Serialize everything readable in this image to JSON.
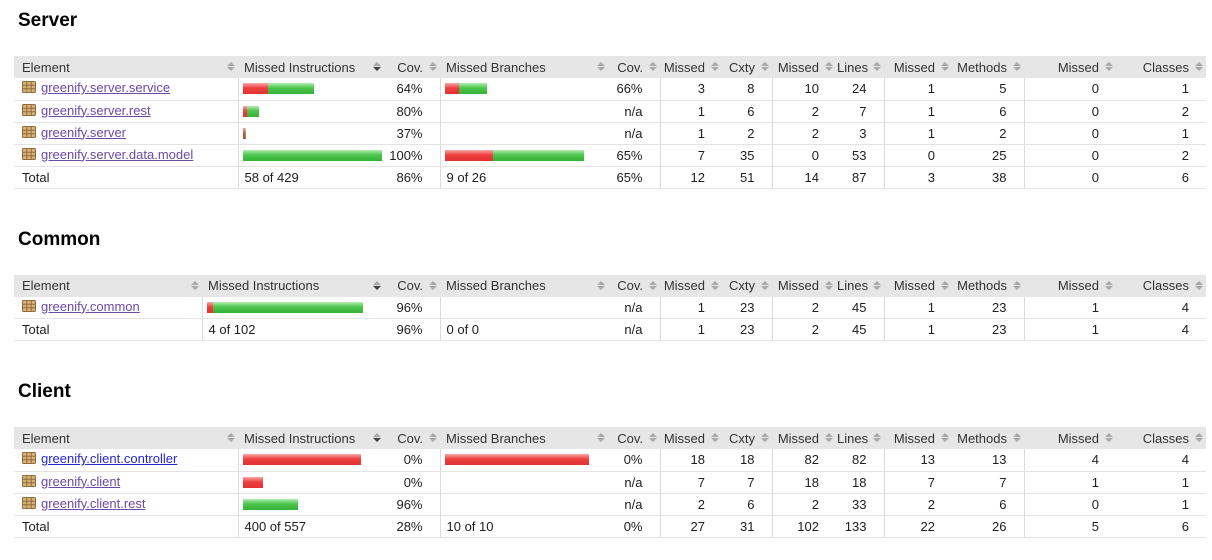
{
  "report": {
    "columns": [
      "Element",
      "Missed Instructions",
      "Cov.",
      "Missed Branches",
      "Cov.",
      "Missed",
      "Cxty",
      "Missed",
      "Lines",
      "Missed",
      "Methods",
      "Missed",
      "Classes"
    ],
    "sort": {
      "active_column_index": 1,
      "direction": "desc"
    },
    "icons": {
      "package_icon": "tan waffle-grid package glyph",
      "sort_icon": "up-down double triangle"
    },
    "colors": {
      "header_bg": "#e6e6e6",
      "bar_red": "#ee4040",
      "bar_green": "#4cc54c",
      "link_visited": "#6b4aa5",
      "link_unvisited": "#2727cc"
    },
    "sections": [
      {
        "title": "Server",
        "rows": [
          {
            "label": "greenify.server.service",
            "link": true,
            "visited": true,
            "mi": {
              "red": 25,
              "green": 46
            },
            "mi_cov": "64%",
            "mb": {
              "red": 14,
              "green": 28
            },
            "mb_cov": "66%",
            "nums": [
              "3",
              "8",
              "10",
              "24",
              "1",
              "5",
              "0",
              "1"
            ]
          },
          {
            "label": "greenify.server.rest",
            "link": true,
            "visited": true,
            "mi": {
              "red": 4,
              "green": 12
            },
            "mi_cov": "80%",
            "mb": null,
            "mb_cov": "n/a",
            "nums": [
              "1",
              "6",
              "2",
              "7",
              "1",
              "6",
              "0",
              "2"
            ]
          },
          {
            "label": "greenify.server",
            "link": true,
            "visited": true,
            "mi": {
              "red": 2,
              "green": 1
            },
            "mi_cov": "37%",
            "mb": null,
            "mb_cov": "n/a",
            "nums": [
              "1",
              "2",
              "2",
              "3",
              "1",
              "2",
              "0",
              "1"
            ]
          },
          {
            "label": "greenify.server.data.model",
            "link": true,
            "visited": true,
            "mi": {
              "red": 0,
              "green": 139
            },
            "mi_cov": "100%",
            "mb": {
              "red": 48,
              "green": 91
            },
            "mb_cov": "65%",
            "nums": [
              "7",
              "35",
              "0",
              "53",
              "0",
              "25",
              "0",
              "2"
            ]
          }
        ],
        "total": {
          "label": "Total",
          "link": false,
          "mi_text": "58 of 429",
          "mi_cov": "86%",
          "mb_text": "9 of 26",
          "mb_cov": "65%",
          "nums": [
            "12",
            "51",
            "14",
            "87",
            "3",
            "38",
            "0",
            "6"
          ]
        }
      },
      {
        "title": "Common",
        "rows": [
          {
            "label": "greenify.common",
            "link": true,
            "visited": true,
            "mi": {
              "red": 6,
              "green": 150
            },
            "mi_cov": "96%",
            "mb": null,
            "mb_cov": "n/a",
            "nums": [
              "1",
              "23",
              "2",
              "45",
              "1",
              "23",
              "1",
              "4"
            ]
          }
        ],
        "total": {
          "label": "Total",
          "link": false,
          "mi_text": "4 of 102",
          "mi_cov": "96%",
          "mb_text": "0 of 0",
          "mb_cov": "n/a",
          "nums": [
            "1",
            "23",
            "2",
            "45",
            "1",
            "23",
            "1",
            "4"
          ]
        }
      },
      {
        "title": "Client",
        "rows": [
          {
            "label": "greenify.client.controller",
            "link": true,
            "visited": false,
            "mi": {
              "red": 118,
              "green": 0
            },
            "mi_cov": "0%",
            "mb": {
              "red": 144,
              "green": 0
            },
            "mb_cov": "0%",
            "nums": [
              "18",
              "18",
              "82",
              "82",
              "13",
              "13",
              "4",
              "4"
            ]
          },
          {
            "label": "greenify.client",
            "link": true,
            "visited": true,
            "mi": {
              "red": 20,
              "green": 0
            },
            "mi_cov": "0%",
            "mb": null,
            "mb_cov": "n/a",
            "nums": [
              "7",
              "7",
              "18",
              "18",
              "7",
              "7",
              "1",
              "1"
            ]
          },
          {
            "label": "greenify.client.rest",
            "link": true,
            "visited": true,
            "mi": {
              "red": 0,
              "green": 55
            },
            "mi_cov": "96%",
            "mb": null,
            "mb_cov": "n/a",
            "nums": [
              "2",
              "6",
              "2",
              "33",
              "2",
              "6",
              "0",
              "1"
            ]
          }
        ],
        "total": {
          "label": "Total",
          "link": false,
          "mi_text": "400 of 557",
          "mi_cov": "28%",
          "mb_text": "10 of 10",
          "mb_cov": "0%",
          "nums": [
            "27",
            "31",
            "102",
            "133",
            "22",
            "26",
            "5",
            "6"
          ]
        }
      }
    ]
  }
}
